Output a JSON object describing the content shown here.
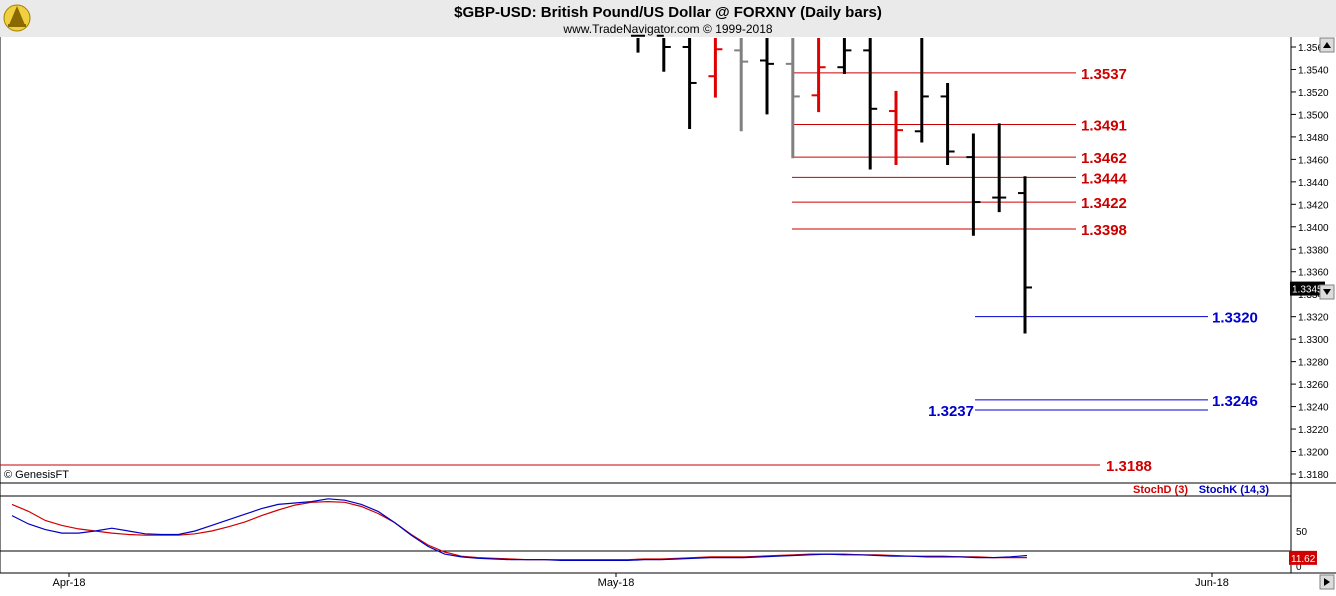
{
  "header": {
    "title": "$GBP-USD:  British Pound/US Dollar @ FORXNY  (Daily bars)",
    "subtitle": "www.TradeNavigator.com © 1999-2018",
    "logo_icon": "trade-navigator-logo-icon"
  },
  "credit": "© GenesisFT",
  "colors": {
    "background": "#ffffff",
    "header_bg": "#eaeaea",
    "bar_black": "#000000",
    "bar_red": "#e00000",
    "bar_gray": "#808080",
    "red_level": "#cc0000",
    "blue_level": "#0000cc",
    "stoch_d": "#d00000",
    "stoch_k": "#0000c0"
  },
  "chart_data": [
    {
      "type": "ohlc",
      "ylim": [
        1.317,
        1.3565
      ],
      "y_ticks": [
        "1.3560",
        "1.3540",
        "1.3520",
        "1.3500",
        "1.3480",
        "1.3460",
        "1.3440",
        "1.3420",
        "1.3400",
        "1.3380",
        "1.3360",
        "1.3340",
        "1.3320",
        "1.3300",
        "1.3280",
        "1.3260",
        "1.3240",
        "1.3220",
        "1.3200",
        "1.3180"
      ],
      "last_price": "1.3345",
      "bars": [
        {
          "color": "black",
          "high": 1.357,
          "low": 1.3555,
          "open": 1.357,
          "close": 1.357
        },
        {
          "color": "black",
          "high": 1.357,
          "low": 1.3538,
          "open": 1.357,
          "close": 1.356
        },
        {
          "color": "black",
          "high": 1.357,
          "low": 1.3487,
          "open": 1.356,
          "close": 1.3528
        },
        {
          "color": "red",
          "high": 1.357,
          "low": 1.3515,
          "open": 1.3534,
          "close": 1.3558
        },
        {
          "color": "gray",
          "high": 1.357,
          "low": 1.3485,
          "open": 1.3557,
          "close": 1.3547
        },
        {
          "color": "black",
          "high": 1.357,
          "low": 1.35,
          "open": 1.3548,
          "close": 1.3545
        },
        {
          "color": "gray",
          "high": 1.357,
          "low": 1.3461,
          "open": 1.3545,
          "close": 1.3516
        },
        {
          "color": "red",
          "high": 1.357,
          "low": 1.3502,
          "open": 1.3517,
          "close": 1.3542
        },
        {
          "color": "black",
          "high": 1.357,
          "low": 1.3536,
          "open": 1.3542,
          "close": 1.3557
        },
        {
          "color": "black",
          "high": 1.357,
          "low": 1.3451,
          "open": 1.3557,
          "close": 1.3505
        },
        {
          "color": "red",
          "high": 1.3521,
          "low": 1.3455,
          "open": 1.3503,
          "close": 1.3486
        },
        {
          "color": "black",
          "high": 1.357,
          "low": 1.3475,
          "open": 1.3485,
          "close": 1.3516
        },
        {
          "color": "black",
          "high": 1.3528,
          "low": 1.3455,
          "open": 1.3516,
          "close": 1.3467
        },
        {
          "color": "black",
          "high": 1.3483,
          "low": 1.3392,
          "open": 1.3462,
          "close": 1.3422
        },
        {
          "color": "black",
          "high": 1.3492,
          "low": 1.3413,
          "open": 1.3426,
          "close": 1.3426
        },
        {
          "color": "black",
          "high": 1.3445,
          "low": 1.3305,
          "open": 1.343,
          "close": 1.3346
        }
      ],
      "red_levels": [
        {
          "label": "1.3537",
          "value": 1.3537
        },
        {
          "label": "1.3491",
          "value": 1.3491
        },
        {
          "label": "1.3462",
          "value": 1.3462
        },
        {
          "label": "1.3444",
          "value": 1.3444
        },
        {
          "label": "1.3422",
          "value": 1.3422
        },
        {
          "label": "1.3398",
          "value": 1.3398
        },
        {
          "label": "1.3188",
          "value": 1.3188
        }
      ],
      "blue_levels": [
        {
          "label": "1.3320",
          "value": 1.332,
          "side": "right"
        },
        {
          "label": "1.3246",
          "value": 1.3246,
          "side": "right"
        },
        {
          "label": "1.3237",
          "value": 1.3237,
          "side": "left"
        }
      ]
    },
    {
      "type": "line",
      "ylim": [
        0,
        100
      ],
      "y_ticks": [
        "50",
        "0"
      ],
      "last_value": "11.62",
      "series": [
        {
          "name": "StochD (3)",
          "color": "#d00000",
          "values": [
            88,
            78,
            65,
            58,
            53,
            50,
            47,
            45,
            44,
            44,
            44,
            46,
            50,
            56,
            63,
            72,
            80,
            87,
            91,
            92,
            91,
            85,
            75,
            62,
            45,
            30,
            20,
            14,
            12,
            11,
            10,
            9,
            9,
            9,
            9,
            9,
            9,
            9,
            10,
            10,
            11,
            12,
            13,
            13,
            13,
            14,
            15,
            16,
            17,
            17,
            17,
            16,
            16,
            15,
            14,
            14,
            14,
            13,
            13,
            12,
            12,
            12
          ]
        },
        {
          "name": "StochK (14,3)",
          "color": "#0000c0",
          "values": [
            72,
            60,
            52,
            47,
            47,
            50,
            54,
            50,
            46,
            45,
            45,
            50,
            58,
            66,
            74,
            82,
            88,
            90,
            92,
            96,
            94,
            88,
            78,
            62,
            44,
            28,
            17,
            13,
            11,
            10,
            9,
            9,
            9,
            8,
            8,
            8,
            8,
            8,
            9,
            9,
            10,
            11,
            12,
            12,
            12,
            13,
            14,
            15,
            16,
            17,
            16,
            16,
            15,
            14,
            14,
            13,
            13,
            13,
            12,
            12,
            13,
            15
          ]
        }
      ],
      "legend": [
        "StochD (3)",
        "StochK (14,3)"
      ]
    }
  ],
  "x_axis": {
    "labels": [
      "Apr-18",
      "May-18",
      "Jun-18"
    ]
  }
}
